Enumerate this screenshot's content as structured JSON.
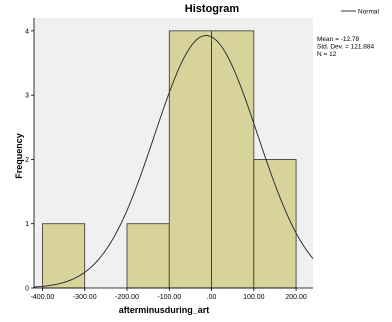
{
  "chart_data": {
    "type": "bar",
    "title": "Histogram",
    "xlabel": "afterminusduring_art",
    "ylabel": "Frequency",
    "bins": [
      {
        "start": -400,
        "end": -300,
        "count": 1
      },
      {
        "start": -300,
        "end": -200,
        "count": 0
      },
      {
        "start": -200,
        "end": -100,
        "count": 1
      },
      {
        "start": -100,
        "end": 0,
        "count": 4
      },
      {
        "start": 0,
        "end": 100,
        "count": 4
      },
      {
        "start": 100,
        "end": 200,
        "count": 2
      }
    ],
    "xticks": [
      "-400.00",
      "-300.00",
      "-200.00",
      "-100.00",
      ".00",
      "100.00",
      "200.00"
    ],
    "xtick_values": [
      -400,
      -300,
      -200,
      -100,
      0,
      100,
      200
    ],
    "yticks": [
      "0",
      "1",
      "2",
      "3",
      "4"
    ],
    "xlim": [
      -420,
      240
    ],
    "ylim": [
      0,
      4.2
    ],
    "normal_curve": {
      "mean": -12.78,
      "sd": 121.884,
      "n": 12,
      "bin_width": 100
    },
    "stats": {
      "mean": "Mean = -12.78",
      "sd": "Std. Dev. = 121.884",
      "n": "N = 12"
    },
    "legend": {
      "label": "Normal"
    },
    "colors": {
      "bar_fill": "#d7d39b",
      "bar_stroke": "#333333",
      "plot_bg": "#f0f0f0",
      "curve": "#333333"
    }
  }
}
